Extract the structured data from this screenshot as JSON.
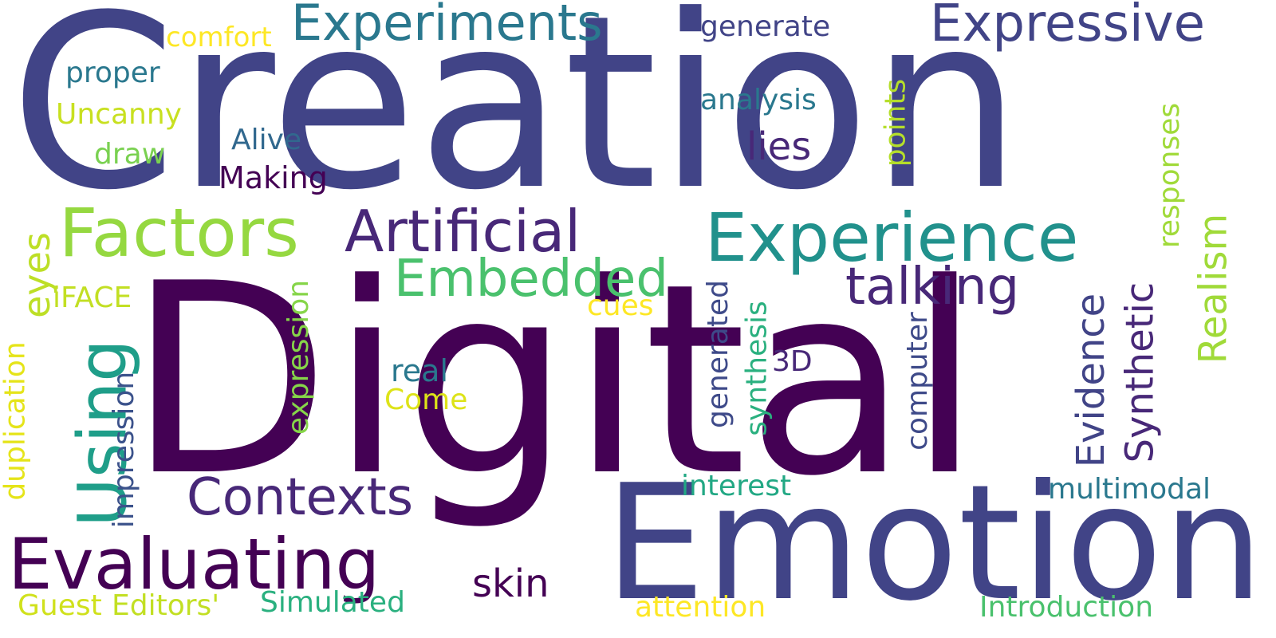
{
  "words": [
    {
      "text": "Creation",
      "color": "#414487"
    },
    {
      "text": "Digital",
      "color": "#440154"
    },
    {
      "text": "Emotion",
      "color": "#414487"
    },
    {
      "text": "Experiments",
      "color": "#2a788e"
    },
    {
      "text": "Expressive",
      "color": "#414487"
    },
    {
      "text": "comfort",
      "color": "#fde725"
    },
    {
      "text": "generate",
      "color": "#414487"
    },
    {
      "text": "proper",
      "color": "#2a788e"
    },
    {
      "text": "analysis",
      "color": "#2a788e"
    },
    {
      "text": "points",
      "color": "#b5de2b"
    },
    {
      "text": "Uncanny",
      "color": "#c8e020"
    },
    {
      "text": "Alive",
      "color": "#31688e"
    },
    {
      "text": "draw",
      "color": "#7ad151"
    },
    {
      "text": "lies",
      "color": "#482878"
    },
    {
      "text": "Making",
      "color": "#440154"
    },
    {
      "text": "responses",
      "color": "#a0da39"
    },
    {
      "text": "Factors",
      "color": "#95d840"
    },
    {
      "text": "Artificial",
      "color": "#482878"
    },
    {
      "text": "Experience",
      "color": "#21918c"
    },
    {
      "text": "Realism",
      "color": "#a0da39"
    },
    {
      "text": "Embedded",
      "color": "#4ac16d"
    },
    {
      "text": "talking",
      "color": "#482878"
    },
    {
      "text": "eyes",
      "color": "#bddf26"
    },
    {
      "text": "iFACE",
      "color": "#c2df23"
    },
    {
      "text": "cues",
      "color": "#fde725"
    },
    {
      "text": "Using",
      "color": "#1f9e89"
    },
    {
      "text": "expression",
      "color": "#86d549"
    },
    {
      "text": "generated",
      "color": "#3e4a89"
    },
    {
      "text": "synthesis",
      "color": "#2ab07f"
    },
    {
      "text": "3D",
      "color": "#482878"
    },
    {
      "text": "computer",
      "color": "#3e4a89"
    },
    {
      "text": "Evidence",
      "color": "#414487"
    },
    {
      "text": "Synthetic",
      "color": "#482878"
    },
    {
      "text": "real",
      "color": "#2a788e"
    },
    {
      "text": "Come",
      "color": "#dde318"
    },
    {
      "text": "duplication",
      "color": "#e5e419"
    },
    {
      "text": "impression",
      "color": "#3b528b"
    },
    {
      "text": "Contexts",
      "color": "#482878"
    },
    {
      "text": "interest",
      "color": "#22a884"
    },
    {
      "text": "multimodal",
      "color": "#2a788e"
    },
    {
      "text": "Evaluating",
      "color": "#440154"
    },
    {
      "text": "skin",
      "color": "#440154"
    },
    {
      "text": "Guest",
      "color": "#d0e11c"
    },
    {
      "text": "Editors'",
      "color": "#c2df23"
    },
    {
      "text": "Simulated",
      "color": "#2ab07f"
    },
    {
      "text": "attention",
      "color": "#fde725"
    },
    {
      "text": "Introduction",
      "color": "#4ac16d"
    }
  ]
}
